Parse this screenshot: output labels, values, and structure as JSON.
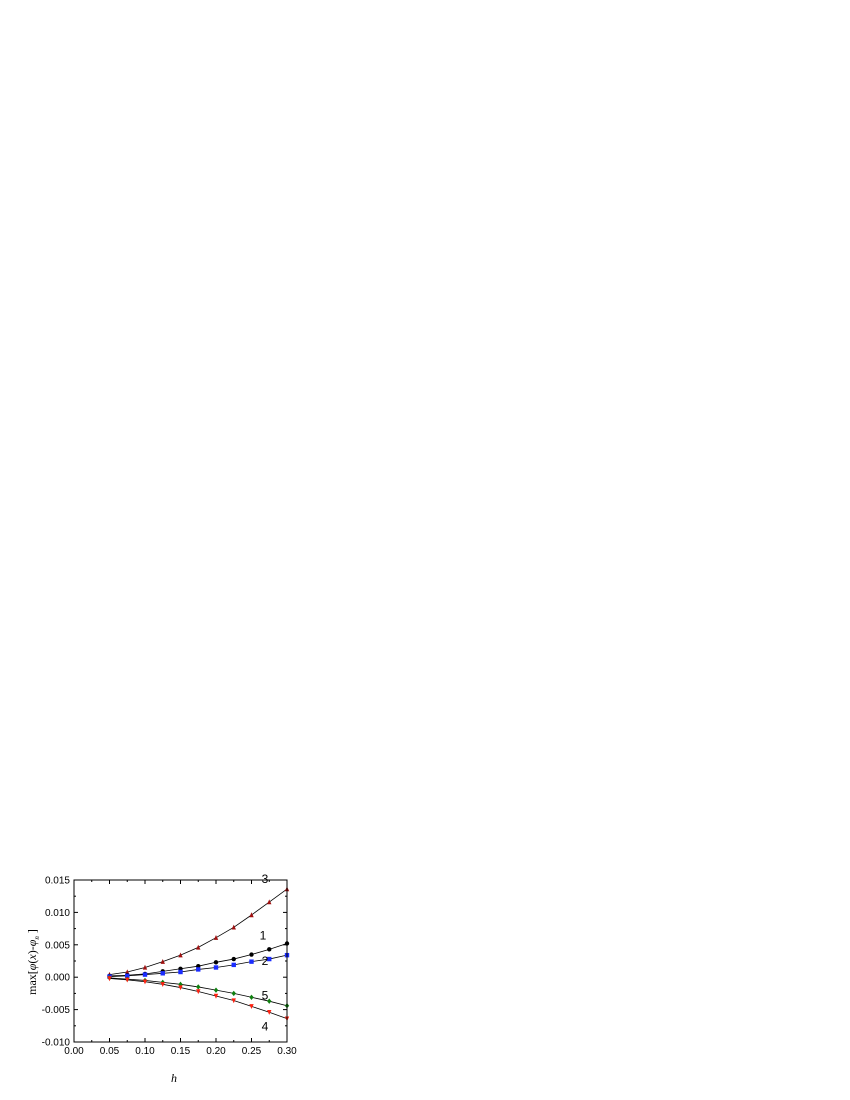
{
  "chart_data": {
    "type": "line",
    "title": "",
    "xlabel": "h",
    "ylabel": "max[φ(x)-φ_n]",
    "xlim": [
      0.0,
      0.3
    ],
    "ylim": [
      -0.01,
      0.015
    ],
    "x_ticks": [
      "0.00",
      "0.05",
      "0.10",
      "0.15",
      "0.20",
      "0.25",
      "0.30"
    ],
    "y_ticks": [
      "-0.010",
      "-0.005",
      "0.000",
      "0.005",
      "0.010",
      "0.015"
    ],
    "grid": false,
    "x": [
      0.05,
      0.075,
      0.1,
      0.125,
      0.15,
      0.175,
      0.2,
      0.225,
      0.25,
      0.275,
      0.3
    ],
    "series": [
      {
        "name": "3",
        "marker": "triangle-up",
        "color": "#a01010",
        "values": [
          0.0004,
          0.0008,
          0.0015,
          0.0024,
          0.0034,
          0.0046,
          0.0061,
          0.0077,
          0.0096,
          0.0116,
          0.0136
        ]
      },
      {
        "name": "1",
        "marker": "circle",
        "color": "#000000",
        "values": [
          0.0002,
          0.0003,
          0.0005,
          0.0009,
          0.0013,
          0.0017,
          0.0023,
          0.0028,
          0.0035,
          0.0043,
          0.0052
        ]
      },
      {
        "name": "2",
        "marker": "square",
        "color": "#1a2cff",
        "values": [
          0.0001,
          0.0002,
          0.0004,
          0.0006,
          0.0008,
          0.0012,
          0.0015,
          0.0019,
          0.0024,
          0.0028,
          0.0034
        ]
      },
      {
        "name": "5",
        "marker": "diamond",
        "color": "#108010",
        "values": [
          -0.0001,
          -0.0003,
          -0.0005,
          -0.0008,
          -0.0011,
          -0.0015,
          -0.002,
          -0.0025,
          -0.0031,
          -0.0037,
          -0.0044
        ]
      },
      {
        "name": "4",
        "marker": "triangle-down",
        "color": "#ff2010",
        "values": [
          -0.0002,
          -0.0004,
          -0.0007,
          -0.0011,
          -0.0016,
          -0.0022,
          -0.0029,
          -0.0036,
          -0.0045,
          -0.0054,
          -0.0064
        ]
      }
    ]
  }
}
